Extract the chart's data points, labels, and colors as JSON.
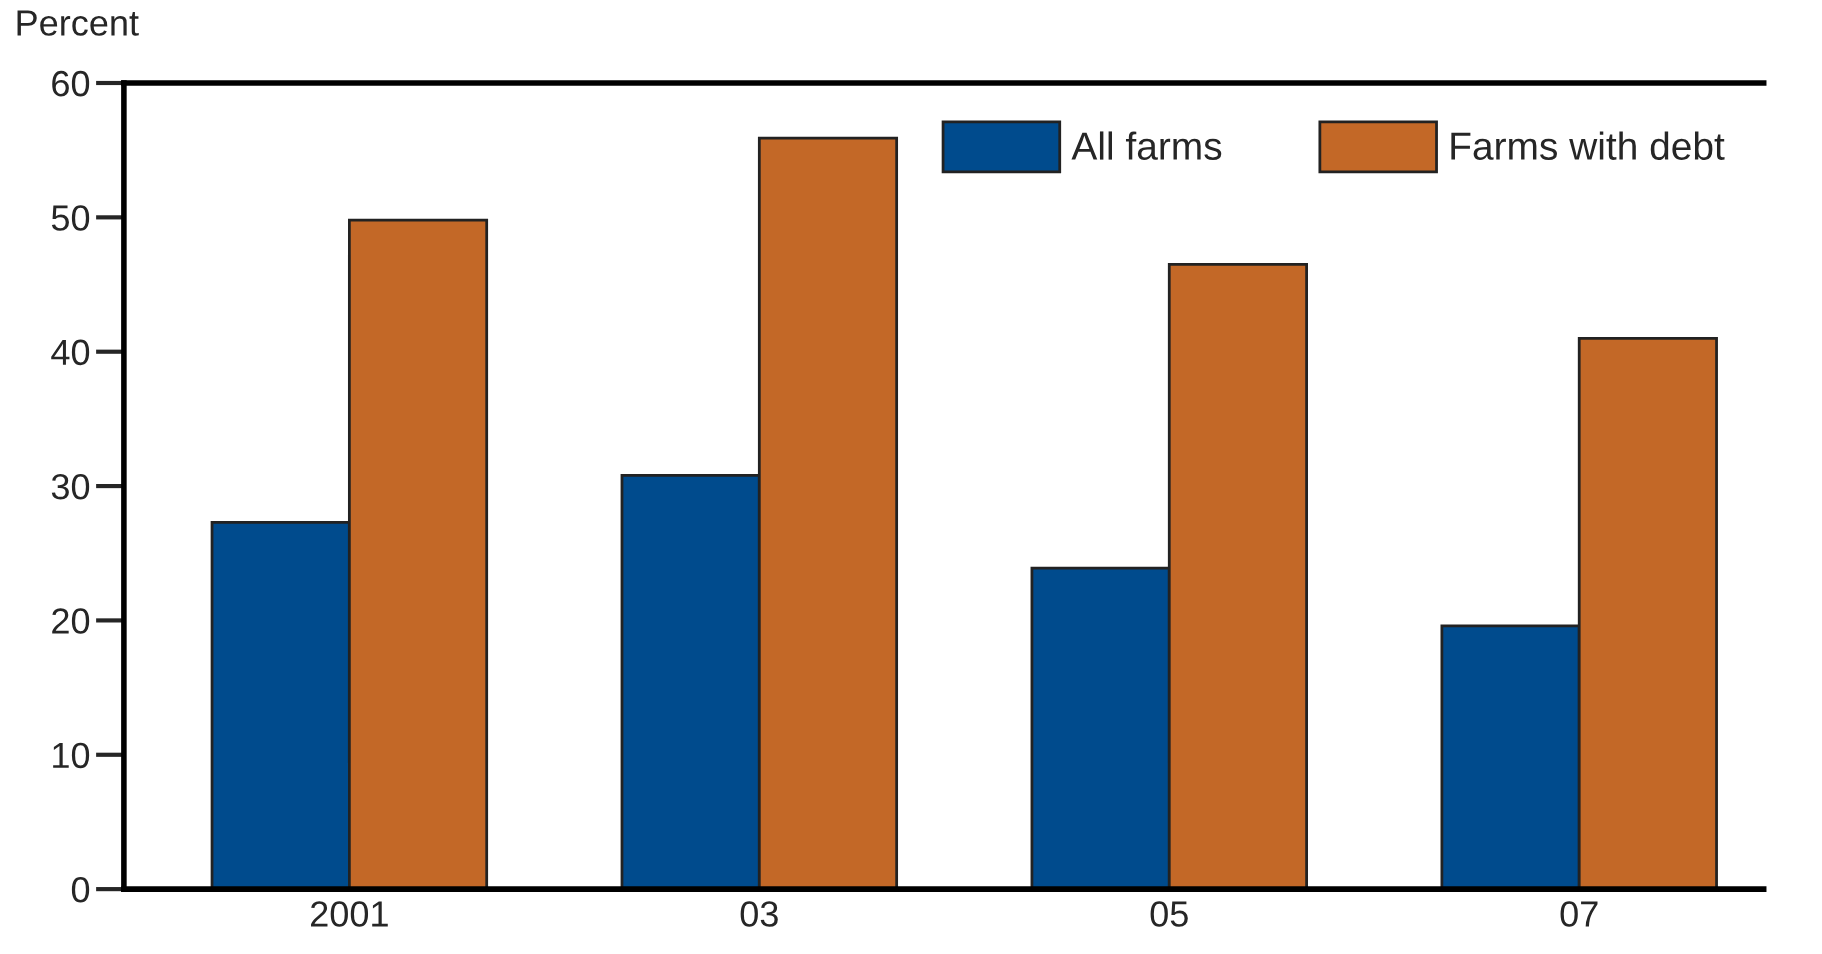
{
  "chart_data": {
    "type": "bar",
    "ylabel": "Percent",
    "categories": [
      "2001",
      "03",
      "05",
      "07"
    ],
    "series": [
      {
        "name": "All farms",
        "color": "#004b8d",
        "values": [
          27.3,
          30.8,
          23.9,
          19.6
        ]
      },
      {
        "name": "Farms with debt",
        "color": "#c36827",
        "values": [
          49.8,
          55.9,
          46.5,
          41.0
        ]
      }
    ],
    "ylim": [
      0,
      60
    ],
    "yticks": [
      0,
      10,
      20,
      30,
      40,
      50,
      60
    ],
    "grid": false,
    "legend": "top right"
  }
}
